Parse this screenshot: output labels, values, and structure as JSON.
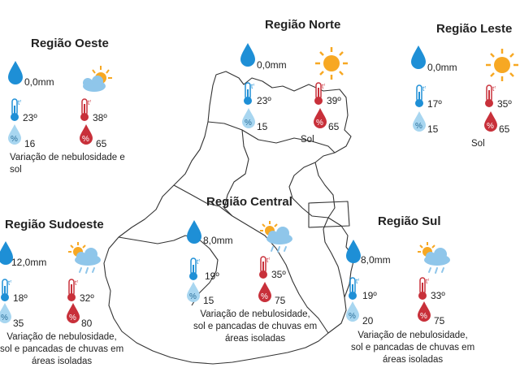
{
  "regions": {
    "oeste": {
      "title": "Região Oeste",
      "rain": "0,0mm",
      "temp_min": "23º",
      "temp_max": "38º",
      "humidity_min": "16",
      "humidity_max": "65",
      "weather_icon": "partly-cloudy-icon",
      "description": [
        "Variação de nebulosidade e",
        "sol"
      ]
    },
    "norte": {
      "title": "Região Norte",
      "rain": "0,0mm",
      "temp_min": "23º",
      "temp_max": "39º",
      "humidity_min": "15",
      "humidity_max": "65",
      "weather_icon": "sun-icon",
      "description": [
        "Sol"
      ]
    },
    "leste": {
      "title": "Região Leste",
      "rain": "0,0mm",
      "temp_min": "17º",
      "temp_max": "35º",
      "humidity_min": "15",
      "humidity_max": "65",
      "weather_icon": "sun-icon",
      "description": [
        "Sol"
      ]
    },
    "central": {
      "title": "Região Central",
      "rain": "8,0mm",
      "temp_min": "19º",
      "temp_max": "35º",
      "humidity_min": "15",
      "humidity_max": "75",
      "weather_icon": "sun-cloud-rain-icon",
      "description": [
        "Variação de nebulosidade,",
        "sol e pancadas de chuvas em",
        "áreas isoladas"
      ]
    },
    "sudoeste": {
      "title": "Região Sudoeste",
      "rain": "12,0mm",
      "temp_min": "18º",
      "temp_max": "32º",
      "humidity_min": "35",
      "humidity_max": "80",
      "weather_icon": "sun-cloud-rain-icon",
      "description": [
        "Variação de nebulosidade,",
        "sol e pancadas de chuvas em",
        "áreas isoladas"
      ]
    },
    "sul": {
      "title": "Região Sul",
      "rain": "8,0mm",
      "temp_min": "19º",
      "temp_max": "33º",
      "humidity_min": "20",
      "humidity_max": "75",
      "weather_icon": "sun-cloud-rain-icon",
      "description": [
        "Variação de nebulosidade,",
        "sol e pancadas de chuvas em",
        "áreas isoladas"
      ]
    }
  },
  "labels": {
    "temp_symbol": "tº",
    "percent_symbol": "%"
  },
  "colors": {
    "drop_blue": "#1e8fd6",
    "drop_light": "#a8d6f0",
    "therm_blue": "#1e8fd6",
    "therm_red": "#c8303a",
    "drop_red": "#c8303a",
    "sun": "#f7a823",
    "cloud": "#8fc6ea"
  }
}
